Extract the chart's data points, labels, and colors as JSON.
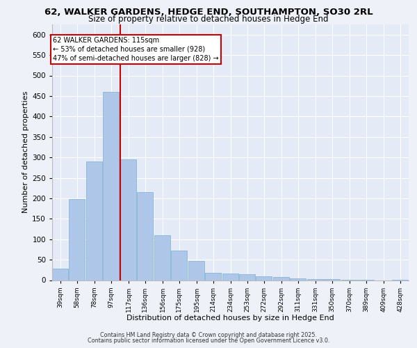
{
  "title_line1": "62, WALKER GARDENS, HEDGE END, SOUTHAMPTON, SO30 2RL",
  "title_line2": "Size of property relative to detached houses in Hedge End",
  "xlabel": "Distribution of detached houses by size in Hedge End",
  "ylabel": "Number of detached properties",
  "bar_color": "#aec6e8",
  "bar_edge_color": "#7aafd4",
  "vline_color": "#cc0000",
  "vline_x": 117,
  "annotation_title": "62 WALKER GARDENS: 115sqm",
  "annotation_line1": "← 53% of detached houses are smaller (928)",
  "annotation_line2": "47% of semi-detached houses are larger (828) →",
  "categories": [
    "39sqm",
    "58sqm",
    "78sqm",
    "97sqm",
    "117sqm",
    "136sqm",
    "156sqm",
    "175sqm",
    "195sqm",
    "214sqm",
    "234sqm",
    "253sqm",
    "272sqm",
    "292sqm",
    "311sqm",
    "331sqm",
    "350sqm",
    "370sqm",
    "389sqm",
    "409sqm",
    "428sqm"
  ],
  "bin_edges": [
    39,
    58,
    78,
    97,
    117,
    136,
    156,
    175,
    195,
    214,
    234,
    253,
    272,
    292,
    311,
    331,
    350,
    370,
    389,
    409,
    428
  ],
  "values": [
    28,
    198,
    290,
    460,
    295,
    215,
    110,
    73,
    46,
    18,
    16,
    14,
    10,
    7,
    5,
    3,
    2,
    1,
    1,
    0,
    1
  ],
  "ylim": [
    0,
    625
  ],
  "yticks": [
    0,
    50,
    100,
    150,
    200,
    250,
    300,
    350,
    400,
    450,
    500,
    550,
    600
  ],
  "background_color": "#eef2f8",
  "plot_bg_color": "#e4eaf6",
  "footer_line1": "Contains HM Land Registry data © Crown copyright and database right 2025.",
  "footer_line2": "Contains public sector information licensed under the Open Government Licence v3.0."
}
